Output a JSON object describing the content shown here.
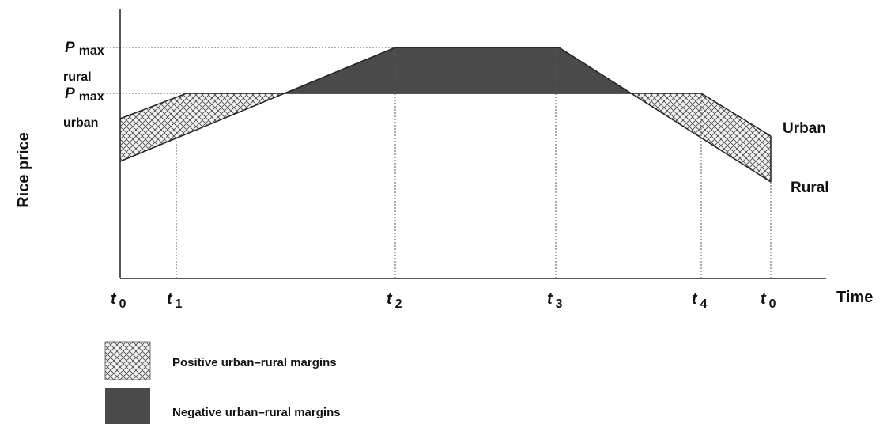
{
  "axes": {
    "y_label": "Rice price",
    "x_label": "Time",
    "x_ticks": [
      {
        "symbol": "t",
        "subscript": "0"
      },
      {
        "symbol": "t",
        "subscript": "1"
      },
      {
        "symbol": "t",
        "subscript": "2"
      },
      {
        "symbol": "t",
        "subscript": "3"
      },
      {
        "symbol": "t",
        "subscript": "4"
      },
      {
        "symbol": "t",
        "subscript": "0"
      }
    ]
  },
  "levels": [
    {
      "symbol": "P",
      "subscript": "max",
      "qualifier": "rural"
    },
    {
      "symbol": "P",
      "subscript": "max",
      "qualifier": "urban"
    }
  ],
  "curves": {
    "urban": "Urban",
    "rural": "Rural"
  },
  "legend": [
    "Positive urban–rural margins",
    "Negative urban–rural margins"
  ]
}
